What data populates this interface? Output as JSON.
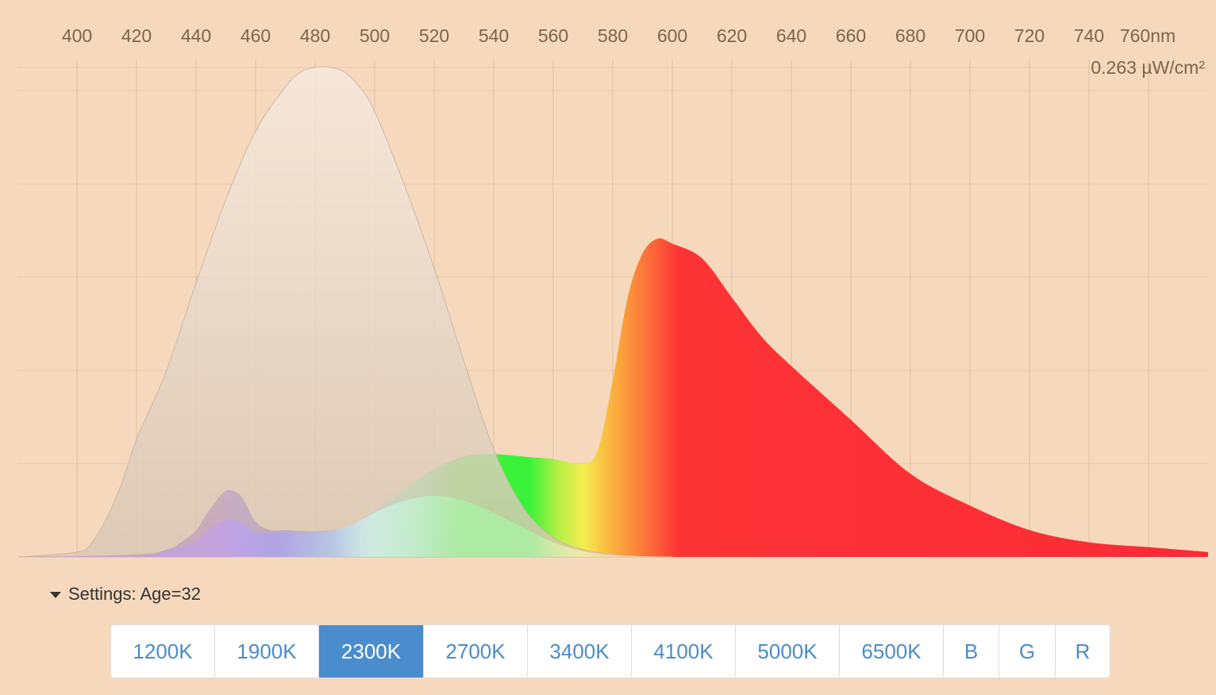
{
  "chart_data": {
    "type": "area",
    "x_unit": "nm",
    "irradiance_label": "0.263 µW/cm²",
    "x_ticks": [
      "400",
      "420",
      "440",
      "460",
      "480",
      "500",
      "520",
      "540",
      "560",
      "580",
      "600",
      "620",
      "640",
      "660",
      "680",
      "700",
      "720",
      "740",
      "760nm"
    ],
    "xlim": [
      380,
      780
    ],
    "grid": true,
    "series": [
      {
        "role": "sensitivity-curve",
        "color": "#e8dcd0",
        "x": [
          380,
          400,
          405,
          410,
          415,
          420,
          430,
          440,
          450,
          460,
          470,
          475,
          480,
          485,
          490,
          495,
          500,
          510,
          520,
          530,
          540,
          550,
          560,
          570,
          580,
          590,
          600
        ],
        "y": [
          0.0,
          0.01,
          0.03,
          0.08,
          0.15,
          0.24,
          0.38,
          0.56,
          0.73,
          0.87,
          0.96,
          0.99,
          1.0,
          1.0,
          0.99,
          0.96,
          0.91,
          0.76,
          0.59,
          0.4,
          0.22,
          0.1,
          0.04,
          0.015,
          0.005,
          0.001,
          0.0
        ]
      },
      {
        "role": "spectrum-2300K",
        "x": [
          380,
          420,
          430,
          435,
          440,
          445,
          450,
          455,
          460,
          465,
          470,
          480,
          490,
          500,
          510,
          520,
          530,
          540,
          550,
          560,
          570,
          575,
          580,
          585,
          590,
          595,
          600,
          610,
          620,
          630,
          640,
          660,
          680,
          700,
          720,
          740,
          760,
          780
        ],
        "y": [
          0.0,
          0.005,
          0.015,
          0.03,
          0.055,
          0.1,
          0.135,
          0.125,
          0.072,
          0.055,
          0.055,
          0.053,
          0.06,
          0.095,
          0.14,
          0.18,
          0.205,
          0.21,
          0.205,
          0.2,
          0.19,
          0.22,
          0.36,
          0.53,
          0.62,
          0.65,
          0.64,
          0.61,
          0.53,
          0.45,
          0.39,
          0.28,
          0.17,
          0.105,
          0.055,
          0.03,
          0.02,
          0.01
        ]
      },
      {
        "role": "weighted-spectrum",
        "color": "#b8f0c8",
        "x": [
          380,
          420,
          430,
          440,
          445,
          450,
          455,
          460,
          470,
          480,
          490,
          500,
          510,
          520,
          530,
          540,
          550,
          560,
          570,
          580,
          590,
          600
        ],
        "y": [
          0.0,
          0.003,
          0.012,
          0.033,
          0.06,
          0.075,
          0.07,
          0.05,
          0.05,
          0.05,
          0.06,
          0.09,
          0.115,
          0.125,
          0.115,
          0.09,
          0.06,
          0.03,
          0.012,
          0.004,
          0.001,
          0.0
        ]
      }
    ]
  },
  "settings": {
    "label": "Settings: Age=32"
  },
  "buttons": [
    {
      "label": "1200K",
      "active": false
    },
    {
      "label": "1900K",
      "active": false
    },
    {
      "label": "2300K",
      "active": true
    },
    {
      "label": "2700K",
      "active": false
    },
    {
      "label": "3400K",
      "active": false
    },
    {
      "label": "4100K",
      "active": false
    },
    {
      "label": "5000K",
      "active": false
    },
    {
      "label": "6500K",
      "active": false
    },
    {
      "label": "B",
      "active": false
    },
    {
      "label": "G",
      "active": false
    },
    {
      "label": "R",
      "active": false
    }
  ]
}
